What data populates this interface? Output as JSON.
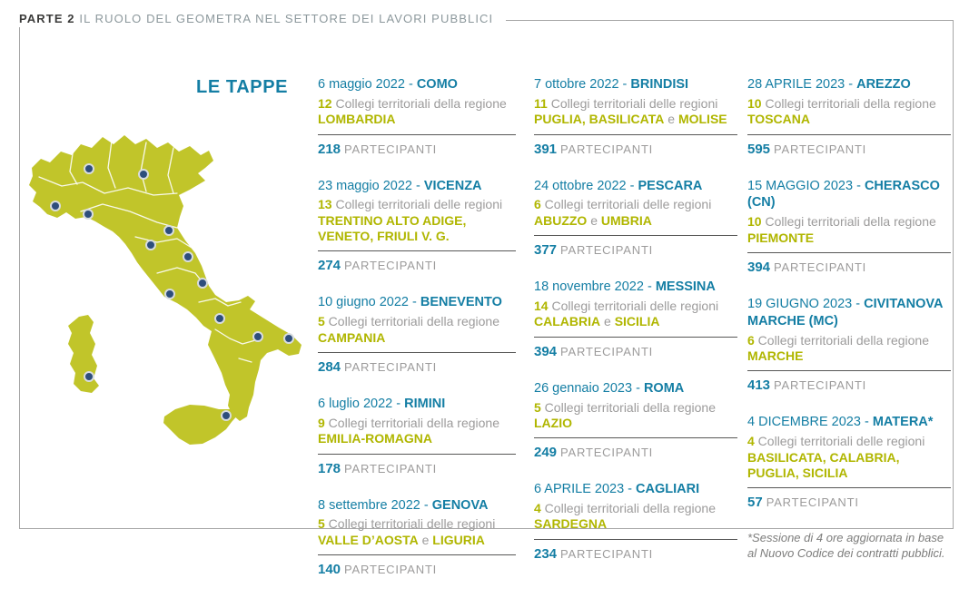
{
  "page": {
    "header": {
      "part_label": "PARTE 2",
      "title": "IL RUOLO DEL GEOMETRA NEL SETTORE DEI LAVORI PUBBLICI"
    },
    "section_title": "LE TAPPE",
    "footnote": "*Sessione di 4 ore aggiornata in base al Nuovo Codice dei contratti pubblici.",
    "colors": {
      "accent_teal": "#147ea4",
      "accent_green": "#b0b600",
      "map_green": "#c1c52a",
      "body_gray": "#9c9b9b",
      "dot_navy": "#2e4e7c"
    }
  },
  "labels": {
    "participants": "PARTECIPANTI"
  },
  "map": {
    "description": "italy-map-with-event-city-dots",
    "dot_cities": [
      "como",
      "vicenza",
      "cherasco",
      "genova",
      "rimini",
      "arezzo",
      "civitanova-marche",
      "pescara",
      "roma",
      "benevento",
      "matera",
      "brindisi",
      "cagliari",
      "messina"
    ]
  },
  "columns": [
    {
      "entries": [
        {
          "date": "6 maggio 2022 - ",
          "city": "COMO",
          "count": "12",
          "desc": [
            {
              "text": " Collegi territoriali della regione ",
              "em": false
            },
            {
              "text": "LOMBARDIA",
              "em": true
            }
          ],
          "participants": "218"
        },
        {
          "date": "23 maggio 2022 - ",
          "city": "VICENZA",
          "count": "13",
          "desc": [
            {
              "text": " Collegi territoriali delle regioni ",
              "em": false
            },
            {
              "text": "TRENTINO ALTO ADIGE, VENETO, FRIULI V. G.",
              "em": true
            }
          ],
          "participants": "274"
        },
        {
          "date": "10 giugno 2022 - ",
          "city": "BENEVENTO",
          "count": "5",
          "desc": [
            {
              "text": " Collegi territoriali della regione ",
              "em": false
            },
            {
              "text": "CAMPANIA",
              "em": true
            }
          ],
          "participants": "284"
        },
        {
          "date": "6 luglio 2022 - ",
          "city": "RIMINI",
          "count": "9",
          "desc": [
            {
              "text": " Collegi territoriali della regione ",
              "em": false
            },
            {
              "text": "EMILIA-ROMAGNA",
              "em": true
            }
          ],
          "participants": "178"
        },
        {
          "date": "8 settembre 2022 - ",
          "city": "GENOVA",
          "count": "5",
          "desc": [
            {
              "text": " Collegi territoriali delle regioni ",
              "em": false
            },
            {
              "text": "VALLE D’AOSTA",
              "em": true
            },
            {
              "text": " e ",
              "em": false
            },
            {
              "text": "LIGURIA",
              "em": true
            }
          ],
          "participants": "140"
        }
      ]
    },
    {
      "entries": [
        {
          "date": "7 ottobre 2022 - ",
          "city": "BRINDISI",
          "count": "11",
          "desc": [
            {
              "text": " Collegi territoriali delle regioni ",
              "em": false
            },
            {
              "text": "PUGLIA, BASILICATA",
              "em": true
            },
            {
              "text": " e ",
              "em": false
            },
            {
              "text": "MOLISE",
              "em": true
            }
          ],
          "participants": "391"
        },
        {
          "date": "24 ottobre 2022 - ",
          "city": "PESCARA",
          "count": "6",
          "desc": [
            {
              "text": " Collegi territoriali delle regioni ",
              "em": false
            },
            {
              "text": "ABUZZO",
              "em": true
            },
            {
              "text": " e ",
              "em": false
            },
            {
              "text": "UMBRIA",
              "em": true
            }
          ],
          "participants": "377"
        },
        {
          "date": "18 novembre 2022 - ",
          "city": "MESSINA",
          "count": "14",
          "desc": [
            {
              "text": " Collegi territoriali delle regioni ",
              "em": false
            },
            {
              "text": "CALABRIA",
              "em": true
            },
            {
              "text": " e ",
              "em": false
            },
            {
              "text": "SICILIA",
              "em": true
            }
          ],
          "participants": "394"
        },
        {
          "date": "26 gennaio 2023 - ",
          "city": "ROMA",
          "count": "5",
          "desc": [
            {
              "text": " Collegi territoriali della regione ",
              "em": false
            },
            {
              "text": "LAZIO",
              "em": true
            }
          ],
          "participants": "249"
        },
        {
          "date": "6 APRILE 2023 - ",
          "city": "CAGLIARI",
          "count": "4",
          "desc": [
            {
              "text": " Collegi territoriali della regione ",
              "em": false
            },
            {
              "text": "SARDEGNA",
              "em": true
            }
          ],
          "participants": "234"
        }
      ]
    },
    {
      "entries": [
        {
          "date": "28 APRILE 2023 - ",
          "city": "AREZZO",
          "count": "10",
          "desc": [
            {
              "text": " Collegi territoriali della regione ",
              "em": false
            },
            {
              "text": "TOSCANA",
              "em": true
            }
          ],
          "participants": "595"
        },
        {
          "date": "15 MAGGIO 2023 - ",
          "city": "CHERASCO (CN)",
          "count": "10",
          "desc": [
            {
              "text": " Collegi territoriali della regione ",
              "em": false
            },
            {
              "text": "PIEMONTE",
              "em": true
            }
          ],
          "participants": "394"
        },
        {
          "date": "19 GIUGNO 2023 - ",
          "city": "CIVITANOVA MARCHE (MC)",
          "count": "6",
          "desc": [
            {
              "text": " Collegi territoriali della regione ",
              "em": false
            },
            {
              "text": "MARCHE",
              "em": true
            }
          ],
          "participants": "413"
        },
        {
          "date": "4 DICEMBRE 2023 - ",
          "city": "MATERA*",
          "count": "4",
          "desc": [
            {
              "text": " Collegi territoriali delle regioni ",
              "em": false
            },
            {
              "text": "BASILICATA, CALABRIA, PUGLIA, SICILIA",
              "em": true
            }
          ],
          "participants": "57"
        }
      ]
    }
  ]
}
